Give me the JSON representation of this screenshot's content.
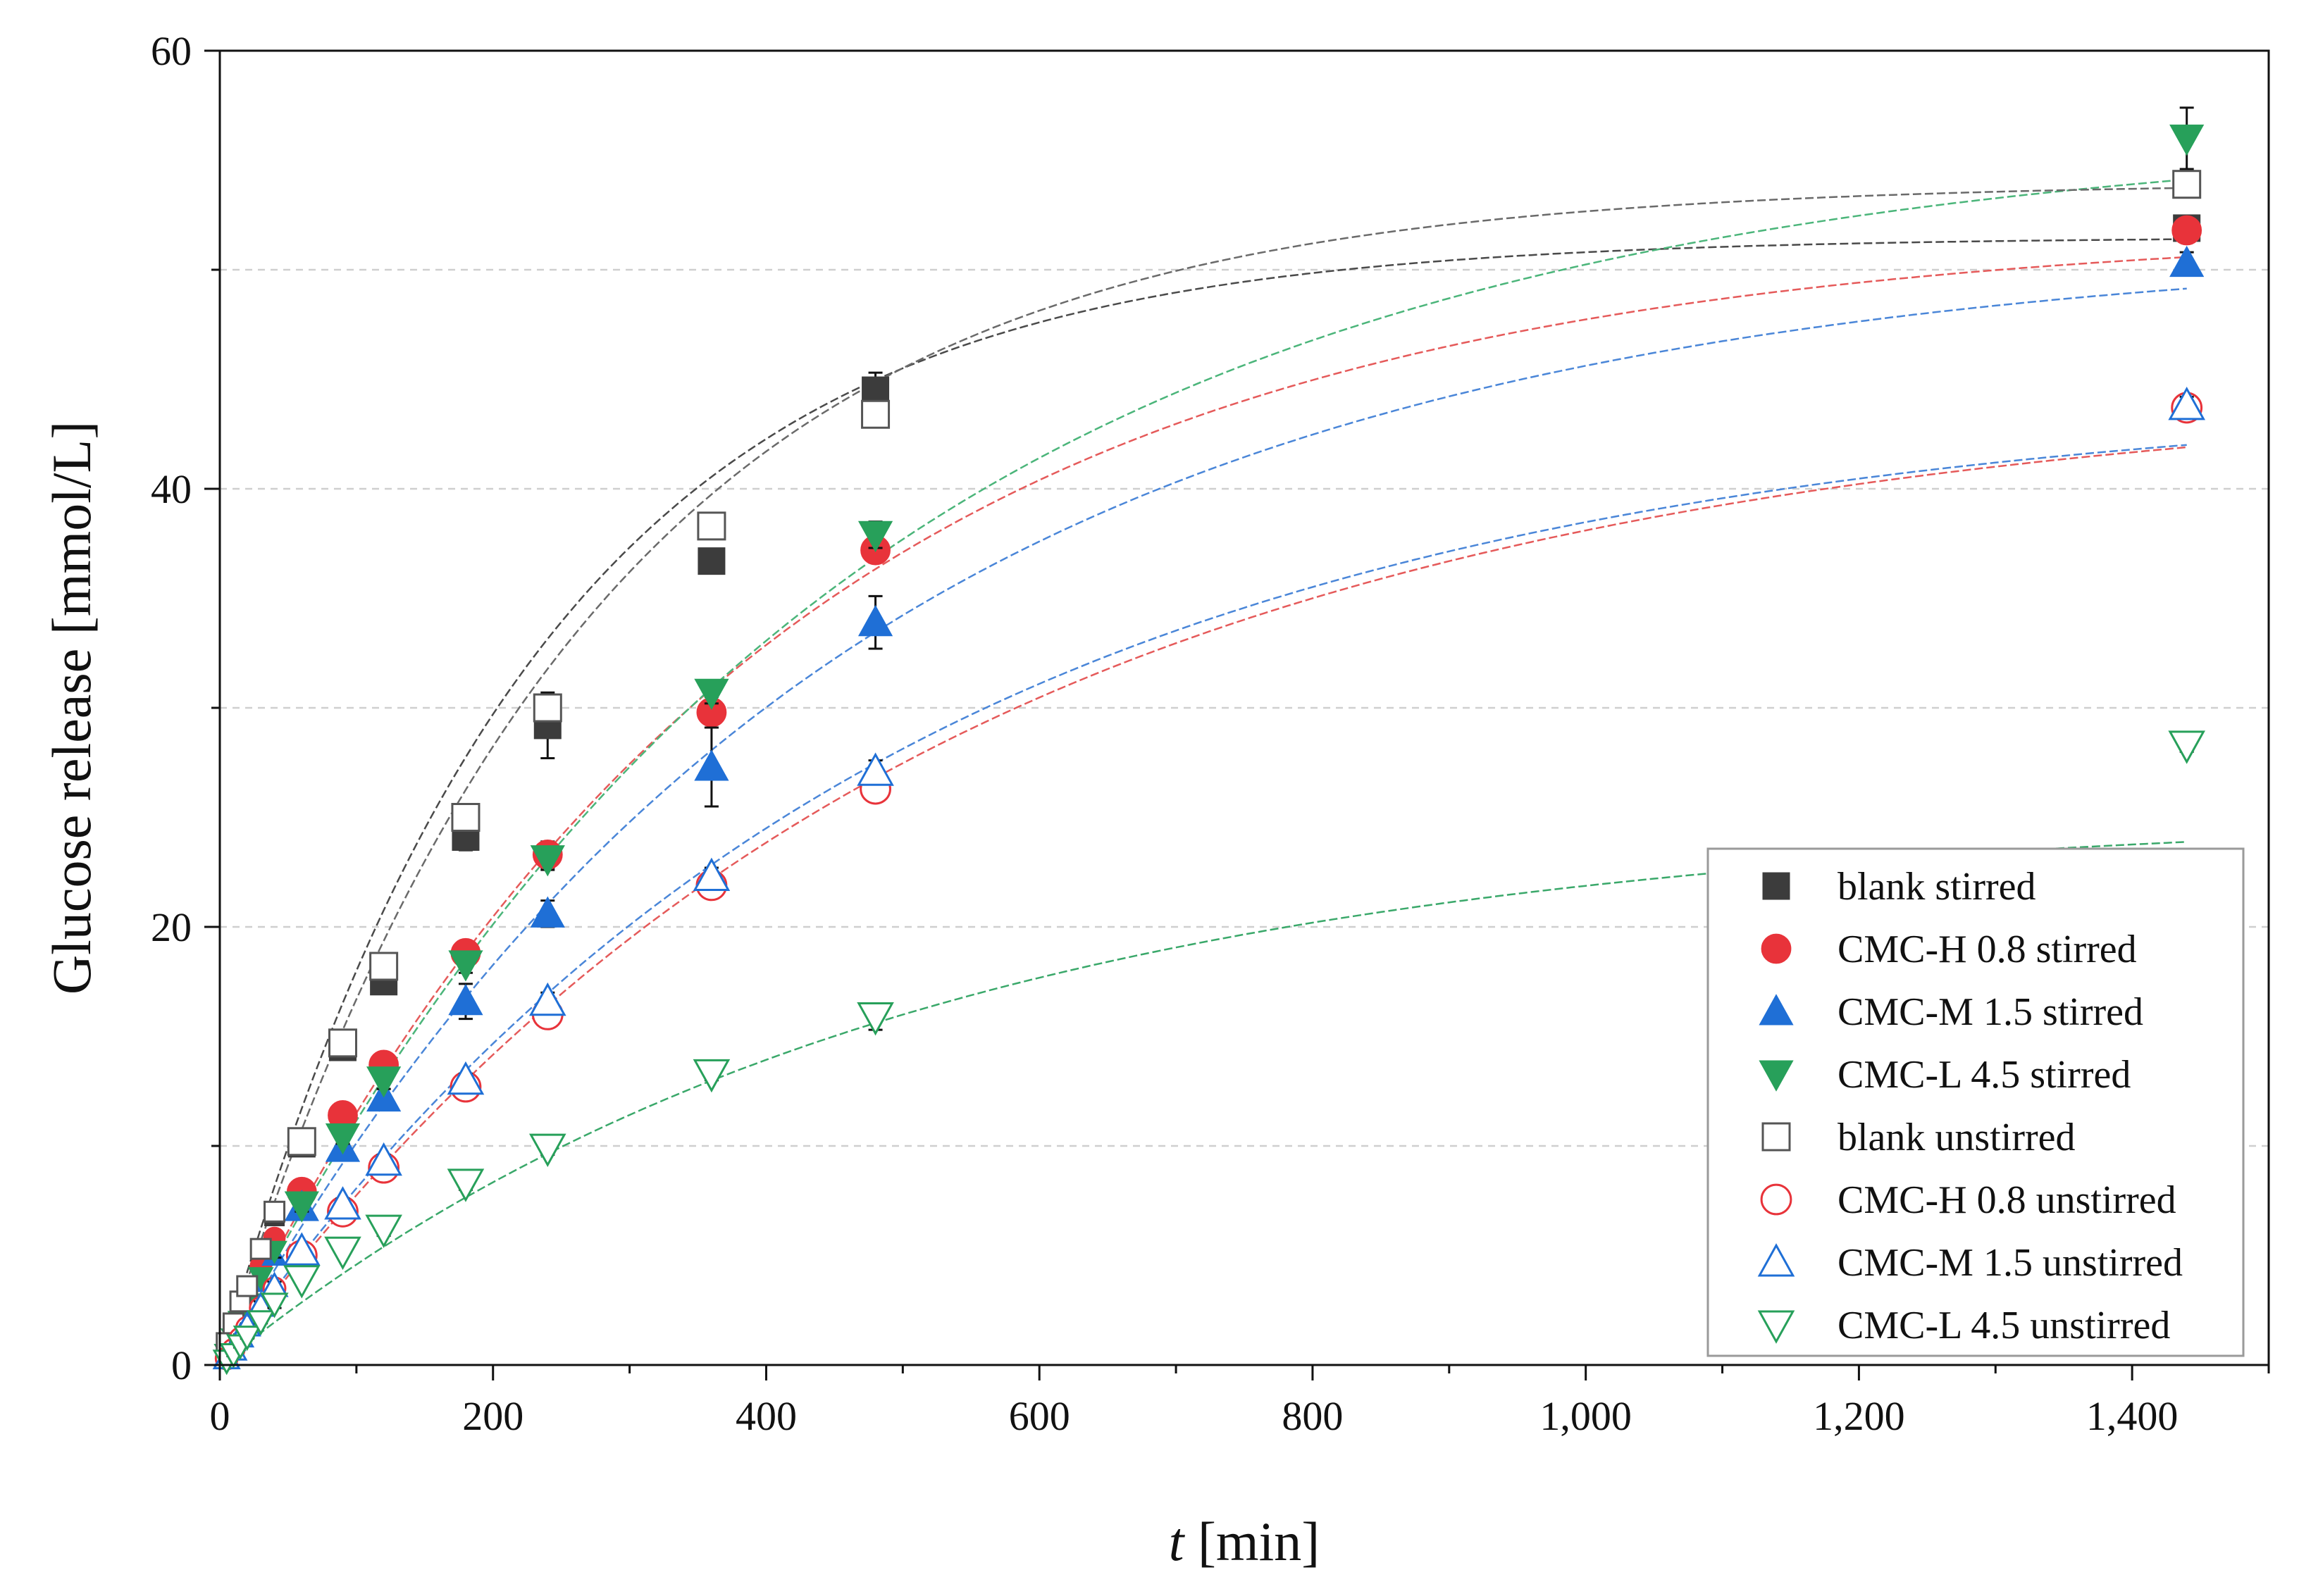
{
  "chart_data": {
    "type": "scatter",
    "xlabel_italic": "t",
    "xlabel_rest": " [min]",
    "ylabel": "Glucose release [mmol/L]",
    "xlim": [
      0,
      1500
    ],
    "ylim": [
      0,
      60
    ],
    "xticks": [
      0,
      200,
      400,
      600,
      800,
      1000,
      1200,
      1400
    ],
    "xtick_labels": [
      "0",
      "200",
      "400",
      "600",
      "800",
      "1,000",
      "1,200",
      "1,400"
    ],
    "yticks": [
      0,
      20,
      40,
      60
    ],
    "ytick_labels": [
      "0",
      "20",
      "40",
      "60"
    ],
    "grid_y": [
      10,
      20,
      30,
      40,
      50
    ],
    "legend_position": "bottom-right",
    "x": [
      5,
      10,
      15,
      20,
      30,
      40,
      60,
      90,
      120,
      180,
      240,
      360,
      480,
      1440
    ],
    "series": [
      {
        "name": "blank stirred",
        "marker": "square",
        "filled": true,
        "color": "#3c3c3c",
        "values": [
          0.8,
          1.6,
          2.6,
          3.4,
          5.1,
          6.8,
          10.1,
          14.5,
          17.5,
          24.1,
          29.2,
          36.7,
          44.5,
          51.9
        ],
        "errors": [
          0.2,
          0.2,
          0.3,
          0.3,
          0.3,
          0.3,
          0.4,
          0.5,
          0.5,
          0.6,
          1.5,
          0.5,
          0.8,
          0.5
        ],
        "fit_color": "#4a4a4a",
        "fit_plateau": 51.5,
        "fit_k": 0.0043
      },
      {
        "name": "CMC-H 0.8 stirred",
        "marker": "circle",
        "filled": true,
        "color": "#e8333a",
        "values": [
          0.5,
          1.3,
          2.0,
          2.8,
          4.5,
          5.8,
          7.9,
          11.4,
          13.7,
          18.8,
          23.3,
          29.8,
          37.2,
          51.8
        ],
        "errors": [
          0.1,
          0.2,
          0.2,
          0.2,
          0.3,
          0.3,
          0.3,
          0.4,
          0.4,
          0.4,
          0.6,
          0.7,
          0.5,
          0.5
        ],
        "fit_color": "#e55a5a",
        "fit_plateau": 52.0,
        "fit_k": 0.0025
      },
      {
        "name": "CMC-M 1.5 stirred",
        "marker": "triangle-up",
        "filled": true,
        "color": "#1f6fd6",
        "values": [
          0.4,
          1.1,
          1.8,
          2.6,
          3.8,
          5.0,
          7.2,
          9.9,
          12.2,
          16.6,
          20.6,
          27.3,
          33.9,
          50.3
        ],
        "errors": [
          0.1,
          0.1,
          0.2,
          0.2,
          0.2,
          0.3,
          0.3,
          0.4,
          0.4,
          0.8,
          0.6,
          1.8,
          1.2,
          0.5
        ],
        "fit_color": "#4a86d8",
        "fit_plateau": 51.3,
        "fit_k": 0.0022
      },
      {
        "name": "CMC-L 4.5 stirred",
        "marker": "triangle-down",
        "filled": true,
        "color": "#27a05a",
        "values": [
          0.5,
          1.2,
          2.0,
          2.8,
          4.0,
          5.2,
          7.3,
          10.4,
          13.0,
          18.3,
          23.1,
          30.7,
          37.9,
          56.0
        ],
        "errors": [
          0.1,
          0.1,
          0.2,
          0.2,
          0.2,
          0.3,
          0.3,
          0.3,
          0.4,
          0.4,
          0.5,
          0.5,
          0.6,
          1.4
        ],
        "fit_color": "#4bb57a",
        "fit_plateau": 56.5,
        "fit_k": 0.0022
      },
      {
        "name": "blank unstirred",
        "marker": "square",
        "filled": false,
        "color": "#555555",
        "values": [
          1.0,
          1.9,
          2.9,
          3.6,
          5.3,
          7.0,
          10.2,
          14.7,
          18.2,
          25.0,
          30.0,
          38.3,
          43.4,
          53.9
        ],
        "errors": [
          0.2,
          0.2,
          0.3,
          0.3,
          0.3,
          0.3,
          0.3,
          0.4,
          0.4,
          0.5,
          0.5,
          0.5,
          0.6,
          0.4
        ],
        "fit_color": "#6a6a6a",
        "fit_plateau": 54.0,
        "fit_k": 0.0037
      },
      {
        "name": "CMC-H 0.8 unstirred",
        "marker": "circle",
        "filled": false,
        "color": "#e8333a",
        "values": [
          0.3,
          0.7,
          1.2,
          1.7,
          2.6,
          3.5,
          5.0,
          7.0,
          9.0,
          12.7,
          16.0,
          21.9,
          26.3,
          43.7
        ],
        "errors": [
          0.1,
          0.1,
          0.1,
          0.1,
          0.2,
          0.2,
          0.2,
          0.3,
          0.3,
          0.4,
          0.4,
          0.4,
          0.5,
          0.4
        ],
        "fit_color": "#e55a5a",
        "fit_plateau": 44.8,
        "fit_k": 0.0019
      },
      {
        "name": "CMC-M 1.5 unstirred",
        "marker": "triangle-up",
        "filled": false,
        "color": "#1f6fd6",
        "values": [
          0.3,
          0.7,
          1.3,
          1.8,
          2.7,
          3.6,
          5.2,
          7.3,
          9.3,
          13.0,
          16.6,
          22.3,
          27.1,
          43.8
        ],
        "errors": [
          0.1,
          0.1,
          0.1,
          0.1,
          0.2,
          0.2,
          0.2,
          0.3,
          0.3,
          0.3,
          0.4,
          0.4,
          0.5,
          0.4
        ],
        "fit_color": "#4a86d8",
        "fit_plateau": 44.5,
        "fit_k": 0.002
      },
      {
        "name": "CMC-L 4.5 unstirred",
        "marker": "triangle-down",
        "filled": false,
        "color": "#27a05a",
        "values": [
          0.2,
          0.5,
          0.9,
          1.3,
          2.0,
          2.8,
          3.9,
          5.2,
          6.2,
          8.3,
          9.9,
          13.3,
          15.9,
          28.3
        ],
        "errors": [
          0.1,
          0.1,
          0.1,
          0.1,
          0.1,
          0.2,
          0.2,
          0.2,
          0.3,
          0.3,
          0.3,
          0.3,
          0.6,
          0.3
        ],
        "fit_color": "#3aa86a",
        "fit_plateau": 25.3,
        "fit_k": 0.002
      }
    ]
  }
}
